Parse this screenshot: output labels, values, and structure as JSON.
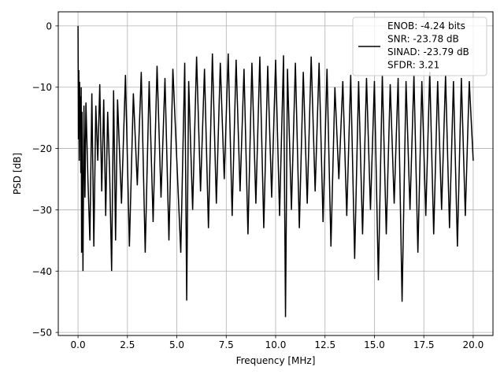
{
  "chart_data": {
    "type": "line",
    "title": "",
    "xlabel": "Frequency [MHz]",
    "ylabel": "PSD [dB]",
    "xlim": [
      -1.0,
      21.0
    ],
    "ylim": [
      -50.5,
      2.3
    ],
    "grid": true,
    "legend_position": "top-right",
    "x_ticks": [
      0.0,
      2.5,
      5.0,
      7.5,
      10.0,
      12.5,
      15.0,
      17.5,
      20.0
    ],
    "x_tick_labels": [
      "0.0",
      "2.5",
      "5.0",
      "7.5",
      "10.0",
      "12.5",
      "15.0",
      "17.5",
      "20.0"
    ],
    "y_ticks": [
      0,
      -10,
      -20,
      -30,
      -40,
      -50
    ],
    "y_tick_labels": [
      "0",
      "−10",
      "−20",
      "−30",
      "−40",
      "−50"
    ],
    "series": [
      {
        "name": "ENOB: -4.24 bits\nSNR: -23.78 dB\nSINAD: -23.79 dB\nSFDR: 3.21",
        "color": "#000000",
        "x": [
          0.0,
          0.02,
          0.04,
          0.06,
          0.08,
          0.1,
          0.12,
          0.14,
          0.16,
          0.18,
          0.2,
          0.25,
          0.3,
          0.35,
          0.4,
          0.5,
          0.6,
          0.7,
          0.8,
          0.9,
          1.0,
          1.1,
          1.2,
          1.3,
          1.4,
          1.5,
          1.6,
          1.7,
          1.8,
          1.9,
          2.0,
          2.2,
          2.4,
          2.6,
          2.8,
          3.0,
          3.2,
          3.4,
          3.6,
          3.8,
          4.0,
          4.2,
          4.4,
          4.6,
          4.8,
          5.0,
          5.2,
          5.4,
          5.5,
          5.6,
          5.8,
          6.0,
          6.2,
          6.4,
          6.6,
          6.8,
          7.0,
          7.2,
          7.4,
          7.6,
          7.8,
          8.0,
          8.2,
          8.4,
          8.6,
          8.8,
          9.0,
          9.2,
          9.4,
          9.6,
          9.8,
          10.0,
          10.2,
          10.4,
          10.5,
          10.6,
          10.8,
          11.0,
          11.2,
          11.4,
          11.6,
          11.8,
          12.0,
          12.2,
          12.4,
          12.6,
          12.8,
          13.0,
          13.2,
          13.4,
          13.6,
          13.8,
          14.0,
          14.2,
          14.4,
          14.6,
          14.8,
          15.0,
          15.2,
          15.4,
          15.6,
          15.8,
          16.0,
          16.2,
          16.4,
          16.6,
          16.8,
          17.0,
          17.2,
          17.4,
          17.6,
          17.8,
          18.0,
          18.2,
          18.4,
          18.6,
          18.8,
          19.0,
          19.2,
          19.4,
          19.6,
          19.8,
          20.0
        ],
        "y": [
          0.0,
          -18.5,
          -7.2,
          -22.0,
          -9.1,
          -16.0,
          -11.5,
          -24.0,
          -10.0,
          -37.0,
          -14.0,
          -40.0,
          -13.0,
          -28.0,
          -12.5,
          -25.0,
          -35.0,
          -11.0,
          -36.0,
          -13.0,
          -22.0,
          -9.5,
          -27.0,
          -12.0,
          -31.0,
          -14.0,
          -24.0,
          -40.0,
          -10.5,
          -35.0,
          -12.0,
          -29.0,
          -8.0,
          -36.0,
          -11.0,
          -26.0,
          -7.5,
          -37.0,
          -9.0,
          -32.0,
          -6.5,
          -28.0,
          -8.5,
          -35.0,
          -7.0,
          -22.0,
          -37.0,
          -6.0,
          -44.8,
          -9.0,
          -30.0,
          -5.0,
          -27.0,
          -7.0,
          -33.0,
          -4.5,
          -29.0,
          -6.0,
          -25.0,
          -4.5,
          -31.0,
          -5.5,
          -27.0,
          -7.0,
          -34.0,
          -6.0,
          -29.0,
          -5.0,
          -33.0,
          -6.5,
          -28.0,
          -5.5,
          -31.0,
          -4.8,
          -47.5,
          -7.0,
          -30.0,
          -6.0,
          -33.0,
          -7.5,
          -29.0,
          -5.0,
          -27.0,
          -6.0,
          -32.0,
          -7.0,
          -36.0,
          -10.0,
          -25.0,
          -9.0,
          -31.0,
          -8.0,
          -38.0,
          -9.0,
          -34.0,
          -8.5,
          -30.0,
          -9.0,
          -41.5,
          -8.0,
          -34.0,
          -9.5,
          -29.0,
          -8.5,
          -45.0,
          -9.0,
          -30.0,
          -8.0,
          -37.0,
          -9.0,
          -31.0,
          -7.5,
          -34.0,
          -9.0,
          -30.0,
          -8.0,
          -33.0,
          -9.0,
          -36.0,
          -8.5,
          -31.0,
          -9.0,
          -22.0
        ]
      }
    ]
  }
}
